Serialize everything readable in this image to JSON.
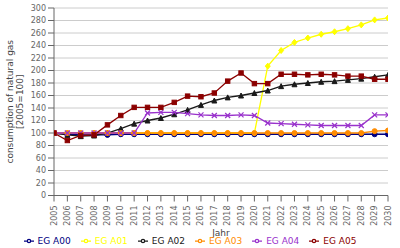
{
  "chart_data": {
    "type": "line",
    "xlabel": "Jahr",
    "ylabel": "consumption of natural gas\n[2005=100]",
    "x": [
      2005,
      2006,
      2007,
      2008,
      2009,
      2010,
      2011,
      2012,
      2013,
      2014,
      2015,
      2016,
      2017,
      2018,
      2019,
      2020,
      2021,
      2022,
      2023,
      2024,
      2025,
      2026,
      2027,
      2028,
      2029,
      2030
    ],
    "xlim": [
      2005,
      2030
    ],
    "xticks": [
      2005,
      2006,
      2007,
      2008,
      2009,
      2010,
      2011,
      2012,
      2013,
      2014,
      2015,
      2016,
      2017,
      2018,
      2019,
      2020,
      2021,
      2022,
      2023,
      2024,
      2025,
      2026,
      2027,
      2028,
      2029,
      2030
    ],
    "ylim": [
      0,
      300
    ],
    "yticks": [
      0,
      20,
      40,
      60,
      80,
      100,
      120,
      140,
      160,
      180,
      200,
      220,
      240,
      260,
      280,
      300
    ],
    "grid": true,
    "legend": "bottom",
    "series": [
      {
        "name": "EG A00",
        "color": "#000080",
        "marker": "circle",
        "values": [
          100,
          98,
          97,
          97,
          97,
          98,
          98,
          98,
          98,
          98,
          98,
          98,
          98,
          98,
          98,
          98,
          98,
          98,
          98,
          98,
          98,
          98,
          98,
          98,
          98,
          98
        ]
      },
      {
        "name": "EG A01",
        "color": "#FFFF00",
        "marker": "diamond",
        "values": [
          100,
          100,
          100,
          100,
          100,
          100,
          100,
          100,
          100,
          100,
          100,
          100,
          100,
          100,
          100,
          100,
          207,
          232,
          245,
          252,
          258,
          262,
          267,
          273,
          281,
          284
        ]
      },
      {
        "name": "EG A02",
        "color": "#1a1a1a",
        "marker": "triangle",
        "values": [
          100,
          97,
          95,
          96,
          100,
          107,
          115,
          120,
          124,
          130,
          137,
          145,
          152,
          157,
          160,
          164,
          168,
          175,
          178,
          180,
          182,
          183,
          185,
          187,
          190,
          193
        ]
      },
      {
        "name": "EG A03",
        "color": "#FF8C00",
        "marker": "circle",
        "values": [
          100,
          100,
          100,
          100,
          100,
          100,
          100,
          100,
          100,
          100,
          100,
          100,
          100,
          100,
          100,
          100,
          100,
          100,
          100,
          100,
          100,
          100,
          100,
          100,
          103,
          104
        ]
      },
      {
        "name": "EG A04",
        "color": "#9932CC",
        "marker": "cross",
        "values": [
          100,
          100,
          100,
          100,
          100,
          100,
          100,
          132,
          133,
          133,
          131,
          129,
          128,
          128,
          129,
          128,
          116,
          115,
          114,
          113,
          112,
          112,
          112,
          112,
          129,
          129
        ]
      },
      {
        "name": "EG A05",
        "color": "#8B0000",
        "marker": "square",
        "values": [
          100,
          88,
          96,
          97,
          113,
          128,
          141,
          141,
          141,
          149,
          159,
          158,
          164,
          183,
          196,
          179,
          179,
          194,
          194,
          193,
          194,
          193,
          191,
          191,
          186,
          186
        ]
      }
    ]
  }
}
